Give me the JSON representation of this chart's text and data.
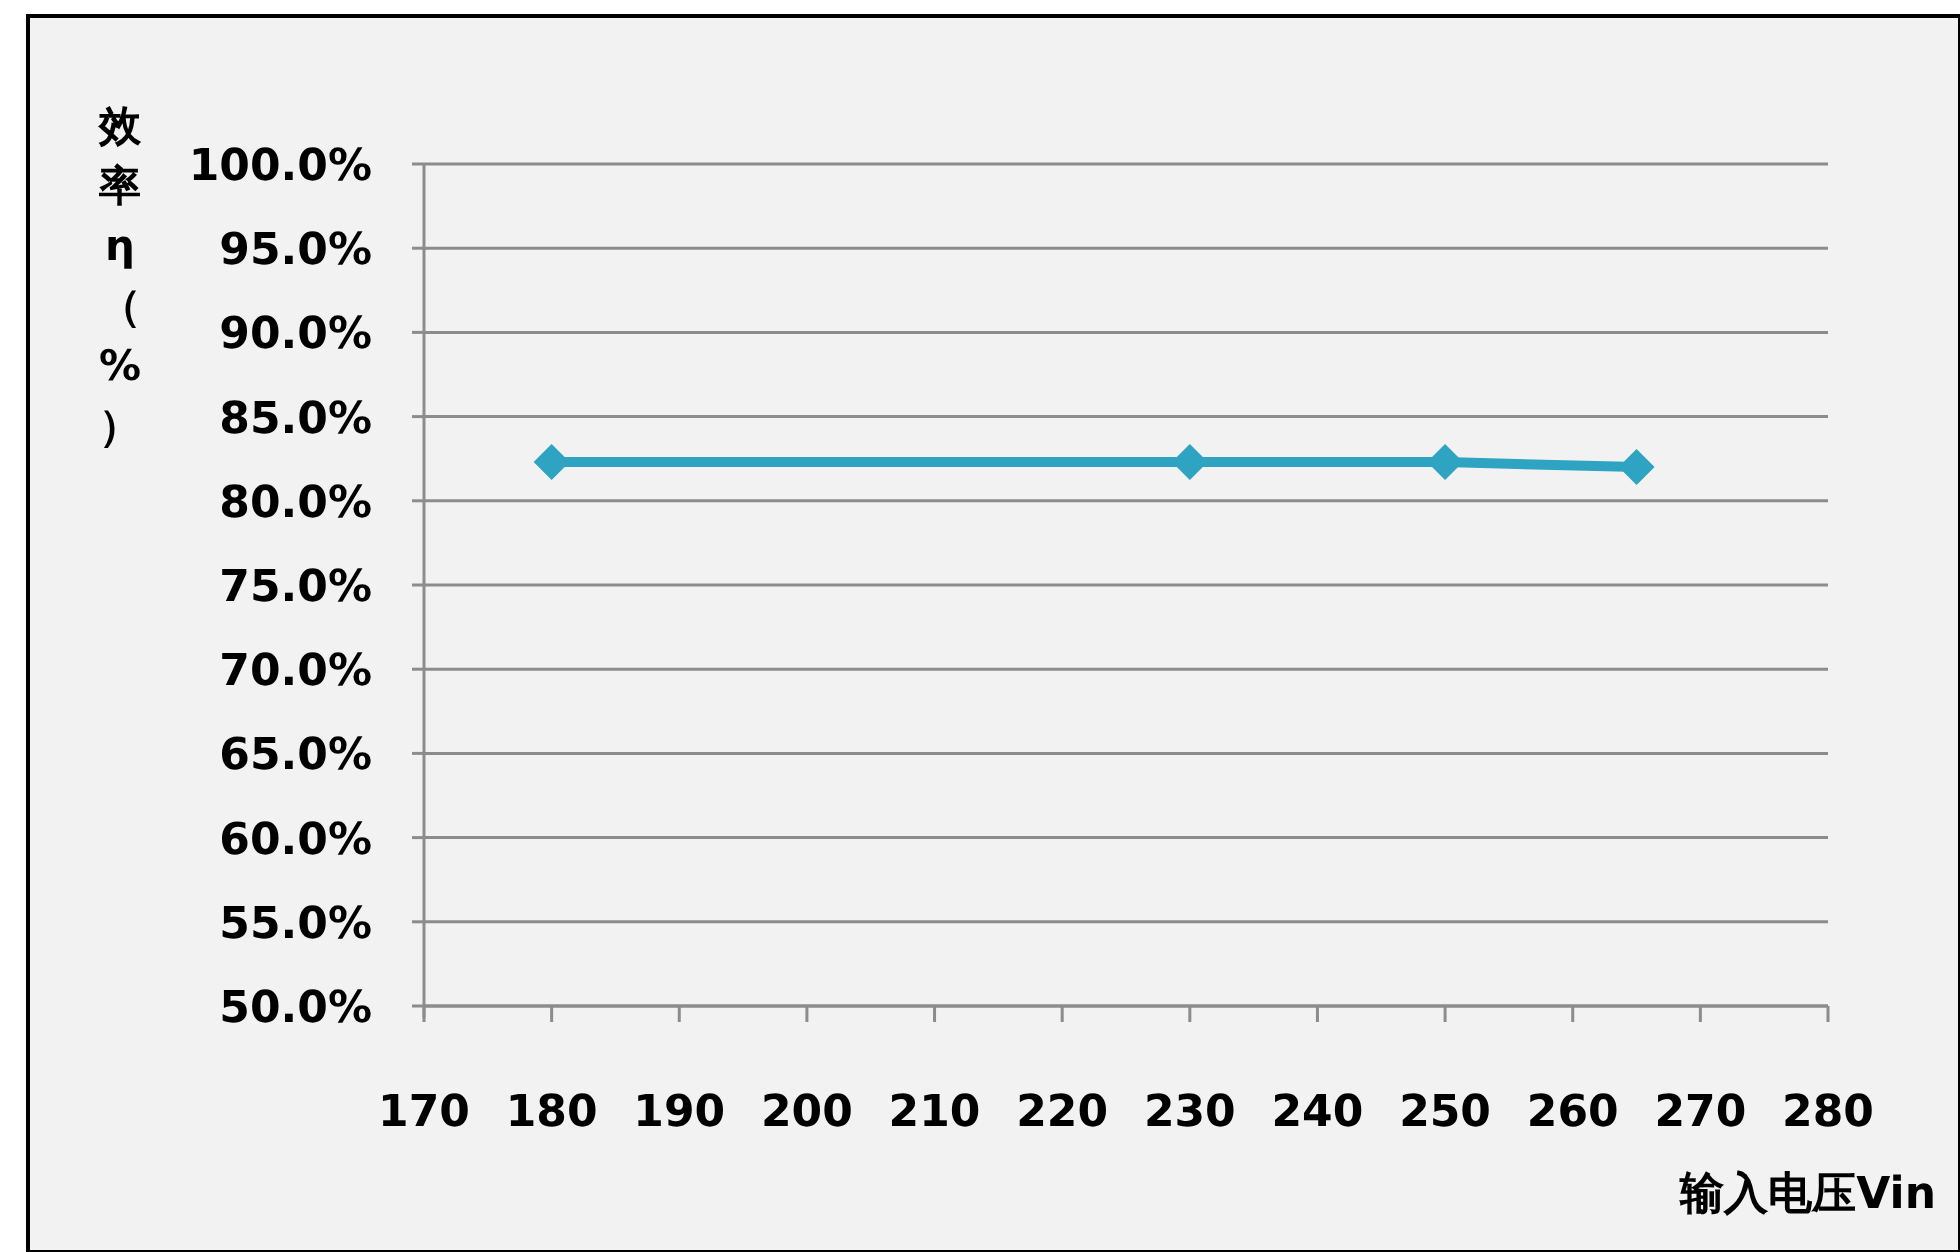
{
  "chart_data": {
    "type": "line",
    "xlabel": "输入电压Vin",
    "ylabel": "效率η（%）",
    "x": [
      180,
      230,
      250,
      265
    ],
    "series": [
      {
        "color": "#2ea3c2",
        "values": [
          82.3,
          82.3,
          82.3,
          82.0
        ]
      }
    ],
    "xlim": [
      170,
      280
    ],
    "xticks": [
      170,
      180,
      190,
      200,
      210,
      220,
      230,
      240,
      250,
      260,
      270,
      280
    ],
    "ylim": [
      50,
      100
    ],
    "yticks": [
      {
        "value": 50,
        "label": "50.0%"
      },
      {
        "value": 55,
        "label": "55.0%"
      },
      {
        "value": 60,
        "label": "60.0%"
      },
      {
        "value": 65,
        "label": "65.0%"
      },
      {
        "value": 70,
        "label": "70.0%"
      },
      {
        "value": 75,
        "label": "75.0%"
      },
      {
        "value": 80,
        "label": "80.0%"
      },
      {
        "value": 85,
        "label": "85.0%"
      },
      {
        "value": 90,
        "label": "90.0%"
      },
      {
        "value": 95,
        "label": "95.0%"
      },
      {
        "value": 100,
        "label": "100.0%"
      }
    ],
    "grid": "y",
    "marker": "diamond",
    "line_style": "solid"
  }
}
